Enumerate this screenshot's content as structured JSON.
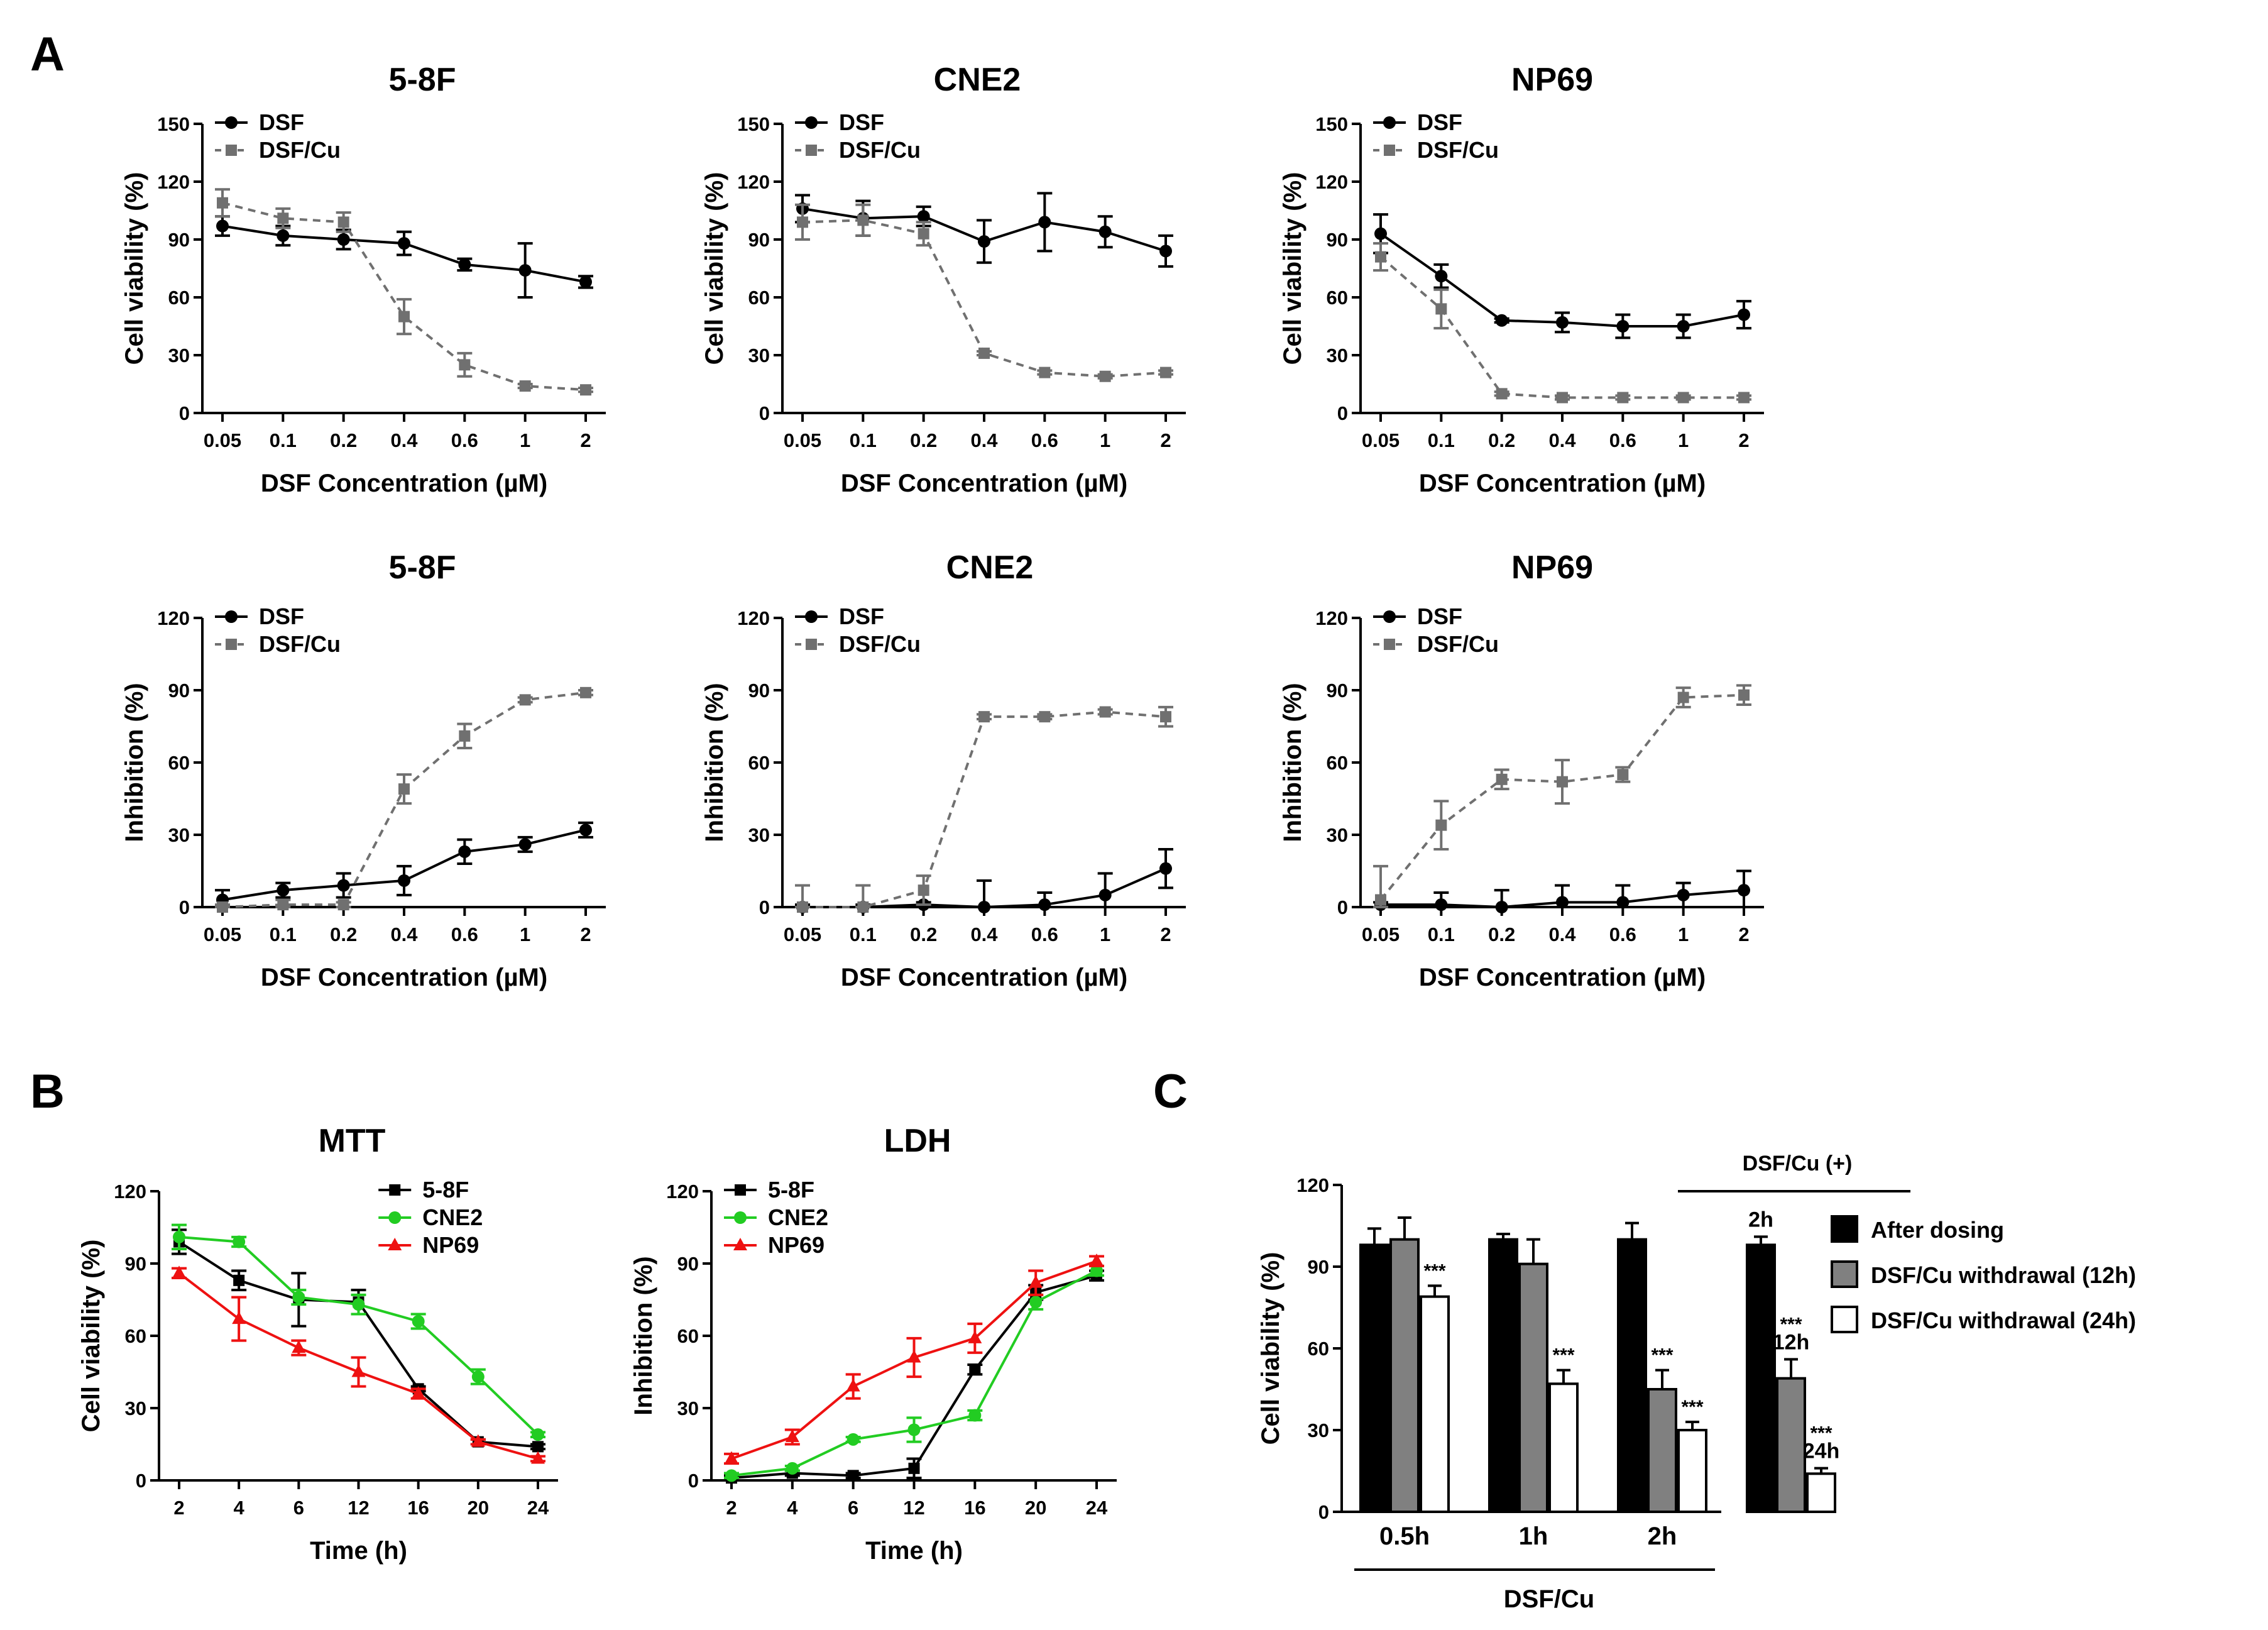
{
  "panel_letters": [
    "A",
    "B",
    "C"
  ],
  "colors": {
    "dsf": "#000000",
    "dsfcu": "#707070",
    "line_5_8F": "#000000",
    "line_CNE2": "#22cc22",
    "line_NP69": "#ee1111",
    "bar_after": "#000000",
    "bar_12h": "#808080",
    "bar_24h": "#ffffff"
  },
  "chart_data": [
    {
      "id": "a1",
      "type": "line",
      "title": "5-8F",
      "xlabel": "DSF Concentration (µM)",
      "ylabel": "Cell viability (%)",
      "ylim": [
        0,
        150
      ],
      "yticks": [
        0,
        30,
        60,
        90,
        120,
        150
      ],
      "categories": [
        "0.05",
        "0.1",
        "0.2",
        "0.4",
        "0.6",
        "1",
        "2"
      ],
      "legend_position": "top-left",
      "series": [
        {
          "name": "DSF",
          "values": [
            97,
            92,
            90,
            88,
            77,
            74,
            68
          ],
          "err": [
            5,
            5,
            5,
            6,
            3,
            14,
            3
          ]
        },
        {
          "name": "DSF/Cu",
          "values": [
            109,
            101,
            99,
            50,
            25,
            14,
            12
          ],
          "err": [
            7,
            5,
            5,
            9,
            6,
            1,
            1
          ]
        }
      ]
    },
    {
      "id": "a2",
      "type": "line",
      "title": "CNE2",
      "xlabel": "DSF Concentration (µM)",
      "ylabel": "Cell viability (%)",
      "ylim": [
        0,
        150
      ],
      "yticks": [
        0,
        30,
        60,
        90,
        120,
        150
      ],
      "categories": [
        "0.05",
        "0.1",
        "0.2",
        "0.4",
        "0.6",
        "1",
        "2"
      ],
      "legend_position": "top-left",
      "series": [
        {
          "name": "DSF",
          "values": [
            106,
            101,
            102,
            89,
            99,
            94,
            84
          ],
          "err": [
            7,
            9,
            5,
            11,
            15,
            8,
            8
          ]
        },
        {
          "name": "DSF/Cu",
          "values": [
            99,
            100,
            93,
            31,
            21,
            19,
            21
          ],
          "err": [
            9,
            8,
            6,
            1,
            1,
            1,
            1
          ]
        }
      ]
    },
    {
      "id": "a3",
      "type": "line",
      "title": "NP69",
      "xlabel": "DSF Concentration (µM)",
      "ylabel": "Cell viability (%)",
      "ylim": [
        0,
        150
      ],
      "yticks": [
        0,
        30,
        60,
        90,
        120,
        150
      ],
      "categories": [
        "0.05",
        "0.1",
        "0.2",
        "0.4",
        "0.6",
        "1",
        "2"
      ],
      "legend_position": "top-left",
      "series": [
        {
          "name": "DSF",
          "values": [
            93,
            71,
            48,
            47,
            45,
            45,
            51
          ],
          "err": [
            10,
            6,
            1,
            5,
            6,
            6,
            7
          ]
        },
        {
          "name": "DSF/Cu",
          "values": [
            81,
            54,
            10,
            8,
            8,
            8,
            8
          ],
          "err": [
            7,
            10,
            1,
            1,
            1,
            1,
            1
          ]
        }
      ]
    },
    {
      "id": "a4",
      "type": "line",
      "title": "5-8F",
      "xlabel": "DSF Concentration (µM)",
      "ylabel": "Inhibition (%)",
      "ylim": [
        0,
        120
      ],
      "yticks": [
        0,
        30,
        60,
        90,
        120
      ],
      "categories": [
        "0.05",
        "0.1",
        "0.2",
        "0.4",
        "0.6",
        "1",
        "2"
      ],
      "legend_position": "top-left",
      "series": [
        {
          "name": "DSF",
          "values": [
            3,
            7,
            9,
            11,
            23,
            26,
            32
          ],
          "err": [
            4,
            3,
            5,
            6,
            5,
            3,
            3
          ]
        },
        {
          "name": "DSF/Cu",
          "values": [
            0,
            1,
            1,
            49,
            71,
            86,
            89
          ],
          "err": [
            1,
            2,
            1,
            6,
            5,
            1,
            1
          ]
        }
      ]
    },
    {
      "id": "a5",
      "type": "line",
      "title": "CNE2",
      "xlabel": "DSF Concentration (µM)",
      "ylabel": "Inhibition (%)",
      "ylim": [
        0,
        120
      ],
      "yticks": [
        0,
        30,
        60,
        90,
        120
      ],
      "categories": [
        "0.05",
        "0.1",
        "0.2",
        "0.4",
        "0.6",
        "1",
        "2"
      ],
      "legend_position": "top-left",
      "series": [
        {
          "name": "DSF",
          "values": [
            0,
            0,
            1,
            0,
            1,
            5,
            16
          ],
          "err": [
            1,
            1,
            1,
            11,
            5,
            9,
            8
          ]
        },
        {
          "name": "DSF/Cu",
          "values": [
            0,
            0,
            7,
            79,
            79,
            81,
            79
          ],
          "err": [
            9,
            9,
            6,
            1,
            1,
            1,
            4
          ]
        }
      ]
    },
    {
      "id": "a6",
      "type": "line",
      "title": "NP69",
      "xlabel": "DSF Concentration (µM)",
      "ylabel": "Inhibition (%)",
      "ylim": [
        0,
        120
      ],
      "yticks": [
        0,
        30,
        60,
        90,
        120
      ],
      "categories": [
        "0.05",
        "0.1",
        "0.2",
        "0.4",
        "0.6",
        "1",
        "2"
      ],
      "legend_position": "top-left",
      "series": [
        {
          "name": "DSF",
          "values": [
            1,
            1,
            0,
            2,
            2,
            5,
            7
          ],
          "err": [
            1,
            5,
            7,
            7,
            7,
            5,
            8
          ]
        },
        {
          "name": "DSF/Cu",
          "values": [
            3,
            34,
            53,
            52,
            55,
            87,
            88
          ],
          "err": [
            14,
            10,
            4,
            9,
            3,
            4,
            4
          ]
        }
      ]
    },
    {
      "id": "b1",
      "type": "line",
      "title": "MTT",
      "xlabel": "Time (h)",
      "ylabel": "Cell viability (%)",
      "ylim": [
        0,
        120
      ],
      "yticks": [
        0,
        30,
        60,
        90,
        120
      ],
      "categories": [
        "2",
        "4",
        "6",
        "12",
        "16",
        "20",
        "24"
      ],
      "legend_position": "top-right",
      "series": [
        {
          "name": "5-8F",
          "values": [
            99,
            83,
            75,
            74,
            38,
            16,
            14
          ],
          "err": [
            5,
            4,
            11,
            5,
            1,
            1,
            1
          ]
        },
        {
          "name": "CNE2",
          "values": [
            101,
            99,
            76,
            73,
            66,
            43,
            19
          ],
          "err": [
            5,
            2,
            3,
            4,
            3,
            3,
            1
          ]
        },
        {
          "name": "NP69",
          "values": [
            86,
            67,
            55,
            45,
            36,
            16,
            9
          ],
          "err": [
            2,
            9,
            3,
            6,
            2,
            1,
            1
          ]
        }
      ]
    },
    {
      "id": "b2",
      "type": "line",
      "title": "LDH",
      "xlabel": "Time (h)",
      "ylabel": "Inhibition (%)",
      "ylim": [
        0,
        120
      ],
      "yticks": [
        0,
        30,
        60,
        90,
        120
      ],
      "categories": [
        "2",
        "4",
        "6",
        "12",
        "16",
        "20",
        "24"
      ],
      "legend_position": "top-left",
      "series": [
        {
          "name": "5-8F",
          "values": [
            1,
            3,
            2,
            5,
            46,
            78,
            85
          ],
          "err": [
            1,
            1,
            1,
            4,
            2,
            3,
            2
          ]
        },
        {
          "name": "CNE2",
          "values": [
            2,
            5,
            17,
            21,
            27,
            74,
            87
          ],
          "err": [
            1,
            1,
            1,
            5,
            2,
            3,
            2
          ]
        },
        {
          "name": "NP69",
          "values": [
            9,
            18,
            39,
            51,
            59,
            82,
            91
          ],
          "err": [
            2,
            3,
            5,
            8,
            6,
            5,
            2
          ]
        }
      ]
    },
    {
      "id": "c",
      "type": "bar",
      "ylabel": "Cell viability (%)",
      "ylim": [
        0,
        120
      ],
      "yticks": [
        0,
        30,
        60,
        90,
        120
      ],
      "categories": [
        "0.5h",
        "1h",
        "2h",
        ""
      ],
      "group_caption": "DSF/Cu",
      "top_caption": "DSF/Cu (+)",
      "legend_position": "right",
      "series": [
        {
          "name": "After dosing",
          "values": [
            98,
            100,
            100,
            98
          ],
          "err": [
            6,
            2,
            6,
            3
          ]
        },
        {
          "name": "DSF/Cu withdrawal (12h)",
          "values": [
            100,
            91,
            45,
            49
          ],
          "err": [
            8,
            9,
            7,
            7
          ]
        },
        {
          "name": "DSF/Cu withdrawal (24h)",
          "values": [
            79,
            47,
            30,
            14
          ],
          "err": [
            4,
            5,
            3,
            2
          ]
        }
      ],
      "significance": [
        {
          "group": 0,
          "series": 2,
          "label": "***"
        },
        {
          "group": 1,
          "series": 2,
          "label": "***"
        },
        {
          "group": 2,
          "series": 1,
          "label": "***"
        },
        {
          "group": 2,
          "series": 2,
          "label": "***"
        },
        {
          "group": 3,
          "series": 1,
          "label": "***"
        },
        {
          "group": 3,
          "series": 2,
          "label": "***"
        }
      ],
      "bar_labels": [
        {
          "group": 3,
          "series": 0,
          "label": "2h"
        },
        {
          "group": 3,
          "series": 1,
          "label": "12h"
        },
        {
          "group": 3,
          "series": 2,
          "label": "24h"
        }
      ]
    }
  ]
}
